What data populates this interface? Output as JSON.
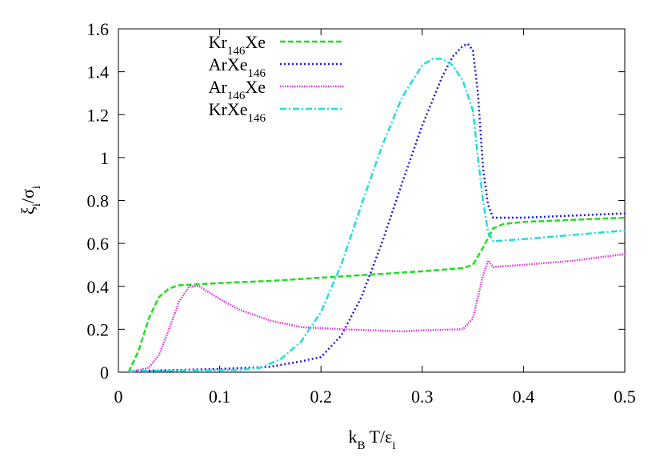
{
  "chart_data": {
    "type": "line",
    "xlabel_parts": [
      {
        "text": "k"
      },
      {
        "text": "B",
        "sub": true
      },
      {
        "text": " T/ε"
      },
      {
        "text": "i",
        "sub": true
      }
    ],
    "ylabel_parts": [
      {
        "text": "ξ"
      },
      {
        "text": "i",
        "sub": true
      },
      {
        "text": "/σ"
      },
      {
        "text": "i",
        "sub": true
      }
    ],
    "xlim": [
      0,
      0.5
    ],
    "ylim": [
      0,
      1.6
    ],
    "xticks": [
      0,
      0.1,
      0.2,
      0.3,
      0.4,
      0.5
    ],
    "yticks": [
      0,
      0.2,
      0.4,
      0.6,
      0.8,
      1,
      1.2,
      1.4,
      1.6
    ],
    "legend": "top-left",
    "series": [
      {
        "name": "Kr146Xe",
        "color": "#22dd22",
        "dash": "7,3",
        "x": [
          0.01,
          0.02,
          0.03,
          0.04,
          0.05,
          0.06,
          0.08,
          0.1,
          0.15,
          0.2,
          0.25,
          0.3,
          0.34,
          0.35,
          0.36,
          0.37,
          0.38,
          0.4,
          0.45,
          0.5
        ],
        "values": [
          0.0,
          0.1,
          0.25,
          0.35,
          0.39,
          0.405,
          0.41,
          0.415,
          0.425,
          0.44,
          0.455,
          0.47,
          0.485,
          0.5,
          0.58,
          0.67,
          0.69,
          0.7,
          0.71,
          0.72
        ]
      },
      {
        "name": "ArXe146",
        "color": "#1a1ad8",
        "dash": "2,3",
        "x": [
          0.01,
          0.1,
          0.15,
          0.18,
          0.2,
          0.22,
          0.24,
          0.26,
          0.28,
          0.3,
          0.32,
          0.33,
          0.34,
          0.345,
          0.35,
          0.355,
          0.36,
          0.365,
          0.37,
          0.4,
          0.45,
          0.5
        ],
        "values": [
          0.005,
          0.015,
          0.025,
          0.05,
          0.07,
          0.17,
          0.35,
          0.6,
          0.88,
          1.15,
          1.38,
          1.47,
          1.52,
          1.53,
          1.5,
          1.3,
          0.95,
          0.78,
          0.72,
          0.72,
          0.73,
          0.74
        ]
      },
      {
        "name": "Ar146Xe",
        "color": "#dd33dd",
        "dash": "1.5,1.5",
        "x": [
          0.01,
          0.03,
          0.04,
          0.05,
          0.06,
          0.07,
          0.08,
          0.1,
          0.12,
          0.15,
          0.18,
          0.2,
          0.22,
          0.25,
          0.28,
          0.3,
          0.34,
          0.35,
          0.36,
          0.365,
          0.37,
          0.4,
          0.45,
          0.5
        ],
        "values": [
          0.0,
          0.02,
          0.08,
          0.2,
          0.33,
          0.4,
          0.4,
          0.34,
          0.29,
          0.24,
          0.21,
          0.205,
          0.2,
          0.195,
          0.19,
          0.195,
          0.2,
          0.25,
          0.45,
          0.52,
          0.49,
          0.5,
          0.52,
          0.55
        ]
      },
      {
        "name": "KrXe146",
        "color": "#22dddd",
        "dash": "8,3,2,3",
        "x": [
          0.01,
          0.12,
          0.14,
          0.16,
          0.18,
          0.2,
          0.22,
          0.24,
          0.26,
          0.28,
          0.3,
          0.31,
          0.32,
          0.33,
          0.34,
          0.35,
          0.355,
          0.36,
          0.365,
          0.37,
          0.4,
          0.45,
          0.5
        ],
        "values": [
          0.005,
          0.01,
          0.02,
          0.06,
          0.14,
          0.28,
          0.5,
          0.78,
          1.05,
          1.28,
          1.43,
          1.46,
          1.46,
          1.43,
          1.36,
          1.22,
          1.0,
          0.8,
          0.65,
          0.61,
          0.62,
          0.64,
          0.66
        ]
      }
    ]
  }
}
